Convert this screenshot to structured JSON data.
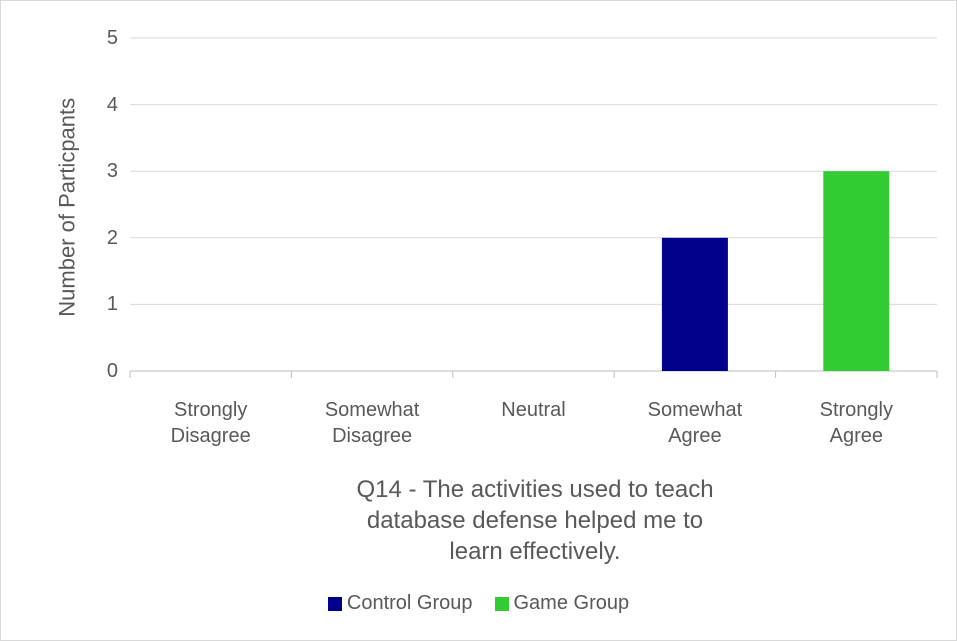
{
  "chart_data": {
    "type": "bar",
    "x_label": "Q14 - The activities used to teach database defense helped me to learn effectively.",
    "y_label": "Number of Particpants",
    "categories": [
      "Strongly Disagree",
      "Somewhat Disagree",
      "Neutral",
      "Somewhat Agree",
      "Strongly Agree"
    ],
    "series": [
      {
        "name": "Control Group",
        "color": "#00008b",
        "values": [
          0,
          0,
          0,
          2,
          0
        ]
      },
      {
        "name": "Game Group",
        "color": "#33cc33",
        "values": [
          0,
          0,
          0,
          0,
          3
        ]
      }
    ],
    "ylim": [
      0,
      5
    ],
    "yticks": [
      0,
      1,
      2,
      3,
      4,
      5
    ],
    "grid": true,
    "legend": "bottom"
  }
}
